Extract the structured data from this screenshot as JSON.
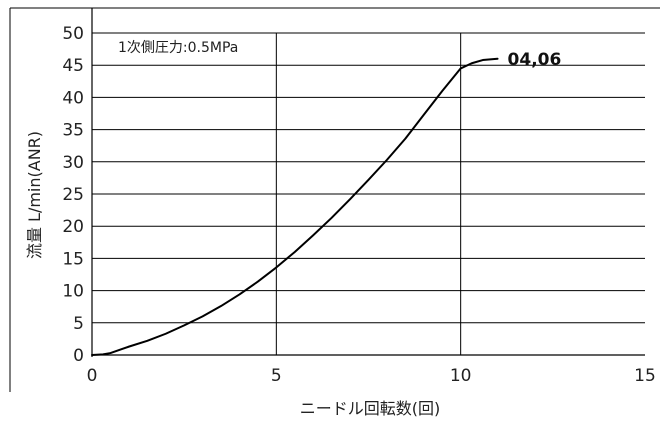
{
  "chart_data": {
    "type": "line",
    "title": "",
    "xlabel": "ニードル回転数(回)",
    "ylabel": "流量 L/min(ANR)",
    "xlim": [
      0,
      15
    ],
    "ylim": [
      0,
      50
    ],
    "x_ticks": [
      "0",
      "5",
      "10",
      "15"
    ],
    "y_ticks": [
      "0",
      "5",
      "10",
      "15",
      "20",
      "25",
      "30",
      "35",
      "40",
      "45",
      "50"
    ],
    "x_tick_values": [
      0,
      5,
      10,
      15
    ],
    "y_tick_values": [
      0,
      5,
      10,
      15,
      20,
      25,
      30,
      35,
      40,
      45,
      50
    ],
    "grid": true,
    "annotation": "1次側圧力:0.5MPa",
    "series": [
      {
        "name": "04,06",
        "x": [
          0,
          0.3,
          0.5,
          0.8,
          1,
          1.5,
          2,
          2.5,
          3,
          3.5,
          4,
          4.5,
          5,
          5.5,
          6,
          6.5,
          7,
          7.5,
          8,
          8.5,
          9,
          9.5,
          10,
          10.3,
          10.6,
          11
        ],
        "y": [
          0,
          0.1,
          0.3,
          0.9,
          1.3,
          2.2,
          3.3,
          4.6,
          6.0,
          7.6,
          9.4,
          11.4,
          13.6,
          16.0,
          18.6,
          21.3,
          24.2,
          27.2,
          30.3,
          33.6,
          37.3,
          41.0,
          44.5,
          45.3,
          45.8,
          46.0
        ],
        "color": "#000000"
      }
    ]
  }
}
